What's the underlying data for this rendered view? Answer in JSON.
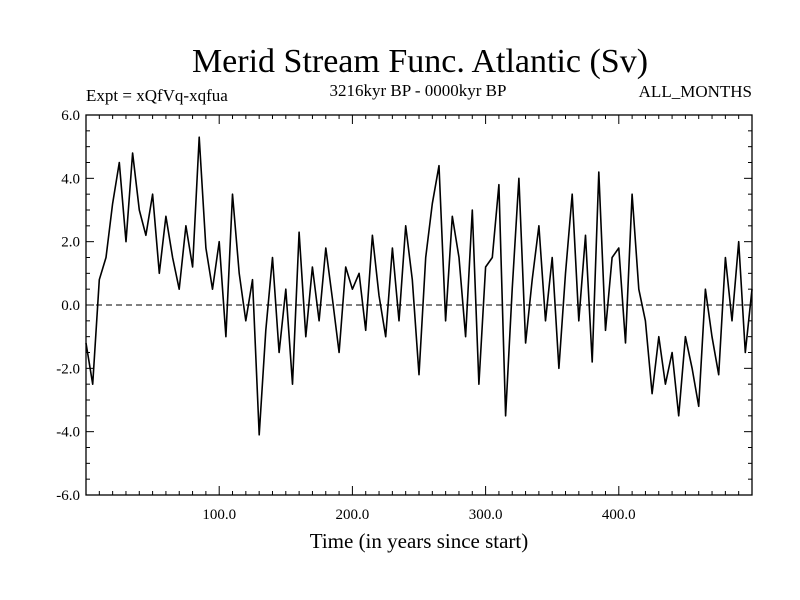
{
  "chart_data": {
    "type": "line",
    "title": "Merid Stream Func. Atlantic (Sv)",
    "expt_label": "Expt = xQfVq-xqfua",
    "period_label": "3216kyr BP - 0000kyr BP",
    "season_label": "ALL_MONTHS",
    "xlabel": "Time (in years since start)",
    "ylabel": "",
    "xlim": [
      0,
      500
    ],
    "ylim": [
      -6.0,
      6.0
    ],
    "xticks": [
      100,
      200,
      300,
      400
    ],
    "xtick_labels": [
      "100.0",
      "200.0",
      "300.0",
      "400.0"
    ],
    "yticks": [
      -6.0,
      -4.0,
      -2.0,
      0.0,
      2.0,
      4.0,
      6.0
    ],
    "ytick_labels": [
      "-6.0",
      "-4.0",
      "-2.0",
      "0.0",
      "2.0",
      "4.0",
      "6.0"
    ],
    "reference_line": 0.0,
    "series": [
      {
        "name": "Merid Stream Func. Atlantic",
        "x": [
          0,
          5,
          10,
          15,
          20,
          25,
          30,
          35,
          40,
          45,
          50,
          55,
          60,
          65,
          70,
          75,
          80,
          85,
          90,
          95,
          100,
          105,
          110,
          115,
          120,
          125,
          130,
          135,
          140,
          145,
          150,
          155,
          160,
          165,
          170,
          175,
          180,
          185,
          190,
          195,
          200,
          205,
          210,
          215,
          220,
          225,
          230,
          235,
          240,
          245,
          250,
          255,
          260,
          265,
          270,
          275,
          280,
          285,
          290,
          295,
          300,
          305,
          310,
          315,
          320,
          325,
          330,
          335,
          340,
          345,
          350,
          355,
          360,
          365,
          370,
          375,
          380,
          385,
          390,
          395,
          400,
          405,
          410,
          415,
          420,
          425,
          430,
          435,
          440,
          445,
          450,
          455,
          460,
          465,
          470,
          475,
          480,
          485,
          490,
          495,
          500
        ],
        "values": [
          -1.2,
          -2.5,
          0.8,
          1.5,
          3.2,
          4.5,
          2.0,
          4.8,
          3.0,
          2.2,
          3.5,
          1.0,
          2.8,
          1.5,
          0.5,
          2.5,
          1.2,
          5.3,
          1.8,
          0.5,
          2.0,
          -1.0,
          3.5,
          1.0,
          -0.5,
          0.8,
          -4.1,
          -0.8,
          1.5,
          -1.5,
          0.5,
          -2.5,
          2.3,
          -1.0,
          1.2,
          -0.5,
          1.8,
          0.2,
          -1.5,
          1.2,
          0.5,
          1.0,
          -0.8,
          2.2,
          0.3,
          -1.0,
          1.8,
          -0.5,
          2.5,
          0.8,
          -2.2,
          1.5,
          3.2,
          4.4,
          -0.5,
          2.8,
          1.5,
          -1.0,
          3.0,
          -2.5,
          1.2,
          1.5,
          3.8,
          -3.5,
          0.5,
          4.0,
          -1.2,
          0.8,
          2.5,
          -0.5,
          1.5,
          -2.0,
          1.0,
          3.5,
          -0.5,
          2.2,
          -1.8,
          4.2,
          -0.8,
          1.5,
          1.8,
          -1.2,
          3.5,
          0.5,
          -0.5,
          -2.8,
          -1.0,
          -2.5,
          -1.5,
          -3.5,
          -1.0,
          -2.0,
          -3.2,
          0.5,
          -1.0,
          -2.2,
          1.5,
          -0.5,
          2.0,
          -1.5,
          0.5
        ]
      }
    ]
  }
}
